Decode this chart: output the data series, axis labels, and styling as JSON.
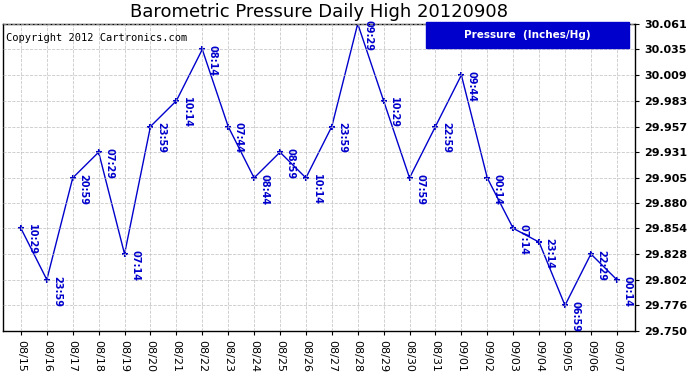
{
  "title": "Barometric Pressure Daily High 20120908",
  "copyright": "Copyright 2012 Cartronics.com",
  "legend_label": "Pressure  (Inches/Hg)",
  "line_color": "#0000cc",
  "background_color": "#ffffff",
  "plot_bg_color": "#ffffff",
  "grid_color": "#bbbbbb",
  "ylim": [
    29.75,
    30.061
  ],
  "yticks": [
    29.75,
    29.776,
    29.802,
    29.828,
    29.854,
    29.88,
    29.905,
    29.931,
    29.957,
    29.983,
    30.009,
    30.035,
    30.061
  ],
  "dates": [
    "08/15",
    "08/16",
    "08/17",
    "08/18",
    "08/19",
    "08/20",
    "08/21",
    "08/22",
    "08/23",
    "08/24",
    "08/25",
    "08/26",
    "08/27",
    "08/28",
    "08/29",
    "08/30",
    "08/31",
    "09/01",
    "09/02",
    "09/03",
    "09/04",
    "09/05",
    "09/06",
    "09/07"
  ],
  "x_indices": [
    0,
    1,
    2,
    3,
    4,
    5,
    6,
    7,
    8,
    9,
    10,
    11,
    12,
    13,
    14,
    15,
    16,
    17,
    18,
    19,
    20,
    21,
    22,
    23
  ],
  "values": [
    29.854,
    29.802,
    29.905,
    29.931,
    29.828,
    29.957,
    29.983,
    30.035,
    29.957,
    29.905,
    29.931,
    29.905,
    29.957,
    30.061,
    29.983,
    29.905,
    29.957,
    30.009,
    29.905,
    29.854,
    29.84,
    29.776,
    29.828,
    29.802
  ],
  "labels": [
    "10:29",
    "23:59",
    "20:59",
    "07:29",
    "07:14",
    "23:59",
    "10:14",
    "08:14",
    "07:44",
    "08:44",
    "08:59",
    "10:14",
    "23:59",
    "09:29",
    "10:29",
    "07:59",
    "22:59",
    "09:44",
    "00:14",
    "07:14",
    "23:14",
    "06:59",
    "22:29",
    "00:14"
  ],
  "title_fontsize": 13,
  "label_fontsize": 7,
  "tick_fontsize": 8,
  "copyright_fontsize": 7.5
}
